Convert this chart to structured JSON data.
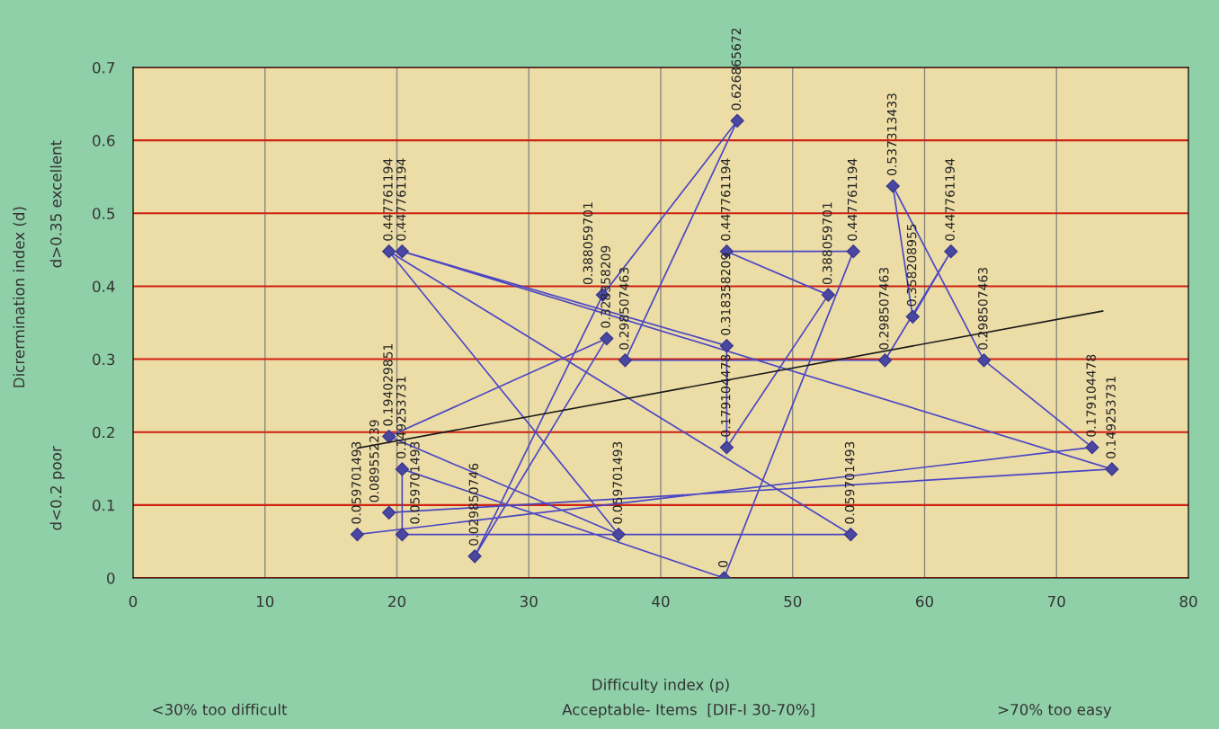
{
  "chart_data": {
    "type": "line",
    "xlabel": "Difficulty index (p)",
    "ylabel": "Dicrermination index (d)",
    "xlim": [
      0,
      80
    ],
    "ylim": [
      0,
      0.7
    ],
    "xticks": [
      0,
      10,
      20,
      30,
      40,
      50,
      60,
      70,
      80
    ],
    "yticks": [
      0,
      0.1,
      0.2,
      0.3,
      0.4,
      0.5,
      0.6,
      0.7
    ],
    "grid": true,
    "marker": "diamond",
    "line_style": "solid",
    "annotations": [
      "d>0.35 excellent",
      "d<0.2 poor",
      "<30% too difficult",
      "Acceptable- Items  [DIF-I 30-70%]",
      ">70% too easy"
    ],
    "series": [
      {
        "color": "#4b47c4",
        "x": [
          17.0,
          72.7,
          64.5,
          57.6,
          59.1,
          62.0,
          57.0,
          37.3,
          45.8,
          35.6,
          25.9,
          35.9,
          19.4,
          36.8,
          19.4,
          54.4,
          20.4,
          20.4,
          44.8,
          54.6,
          45.0,
          52.7,
          45.0,
          45.0,
          20.4,
          74.2,
          19.4
        ],
        "values": [
          0.059701493,
          0.179104478,
          0.298507463,
          0.537313433,
          0.358208955,
          0.447761194,
          0.298507463,
          0.298507463,
          0.626865672,
          0.388059701,
          0.029850746,
          0.328358209,
          0.194029851,
          0.059701493,
          0.447761194,
          0.059701493,
          0.059701493,
          0.149253731,
          0,
          0.447761194,
          0.447761194,
          0.388059701,
          0.179104478,
          0.318358209,
          0.447761194,
          0.149253731,
          0.089552239
        ],
        "value_labels": [
          "0.059701493",
          "0.179104478",
          "0.298507463",
          "0.537313433",
          "0.358208955",
          "0.447761194",
          "0.298507463",
          "0.298507463",
          "0.626865672",
          "0.388059701",
          "0.029850746",
          "0.328358209",
          "0.194029851",
          "0.059701493",
          "0.447761194",
          "0.059701493",
          "0.059701493",
          "0.149253731",
          "0",
          "0.447761194",
          "0.447761194",
          "0.388059701",
          "0.179104478",
          "0.318358209",
          "0.447761194",
          "0.149253731",
          "0.089552239"
        ]
      },
      {
        "type": "line",
        "color": "#1a1a1a",
        "marker": "none",
        "x": [
          17.0,
          73.5
        ],
        "values": [
          0.178,
          0.366
        ]
      }
    ]
  }
}
